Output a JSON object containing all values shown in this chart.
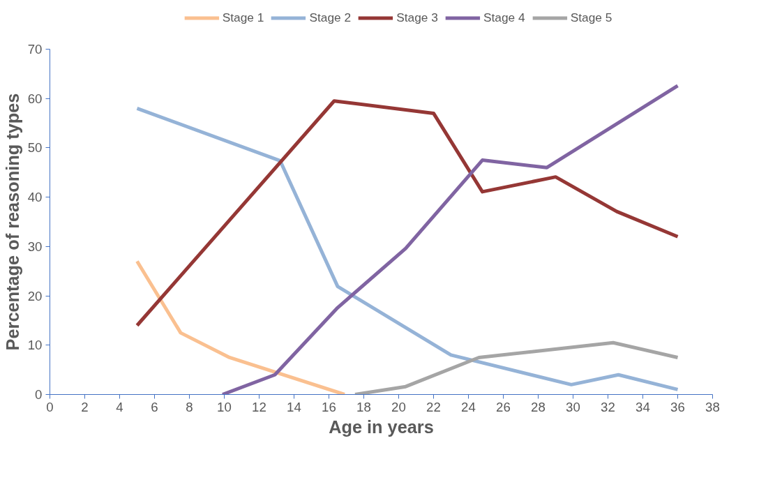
{
  "chart_data": {
    "type": "line",
    "xlabel": "Age in years",
    "ylabel": "Percentage of reasoning types",
    "xlim": [
      0,
      38
    ],
    "xticks": [
      0,
      2,
      4,
      6,
      8,
      10,
      12,
      14,
      16,
      18,
      20,
      22,
      24,
      26,
      28,
      30,
      32,
      34,
      36,
      38
    ],
    "ylim": [
      0,
      70
    ],
    "yticks": [
      0,
      10,
      20,
      30,
      40,
      50,
      60,
      70
    ],
    "grid": false,
    "legend": "top",
    "marker": "none",
    "line_style": "solid",
    "series": [
      {
        "name": "Stage 1",
        "color": "#fac090",
        "x": [
          5,
          7.5,
          10.3,
          16.9
        ],
        "values": [
          27,
          12.5,
          7.5,
          0
        ]
      },
      {
        "name": "Stage 2",
        "color": "#95b3d7",
        "x": [
          5,
          13.2,
          16.5,
          23,
          29.9,
          32.6,
          36
        ],
        "values": [
          58,
          47.4,
          21.9,
          8,
          2,
          4,
          1
        ]
      },
      {
        "name": "Stage 3",
        "color": "#953735",
        "x": [
          5,
          16.3,
          22,
          24.8,
          29,
          32.5,
          36
        ],
        "values": [
          14,
          59.5,
          57,
          41.1,
          44.1,
          37.1,
          32
        ]
      },
      {
        "name": "Stage 4",
        "color": "#8064a2",
        "x": [
          9.9,
          12.9,
          16.5,
          20.4,
          24.8,
          28.5,
          36
        ],
        "values": [
          0,
          4,
          17.6,
          29.6,
          47.5,
          46,
          62.6
        ]
      },
      {
        "name": "Stage 5",
        "color": "#a5a5a5",
        "x": [
          17.5,
          20.4,
          24.6,
          32.3,
          36
        ],
        "values": [
          0,
          1.6,
          7.5,
          10.5,
          7.5
        ]
      }
    ]
  }
}
